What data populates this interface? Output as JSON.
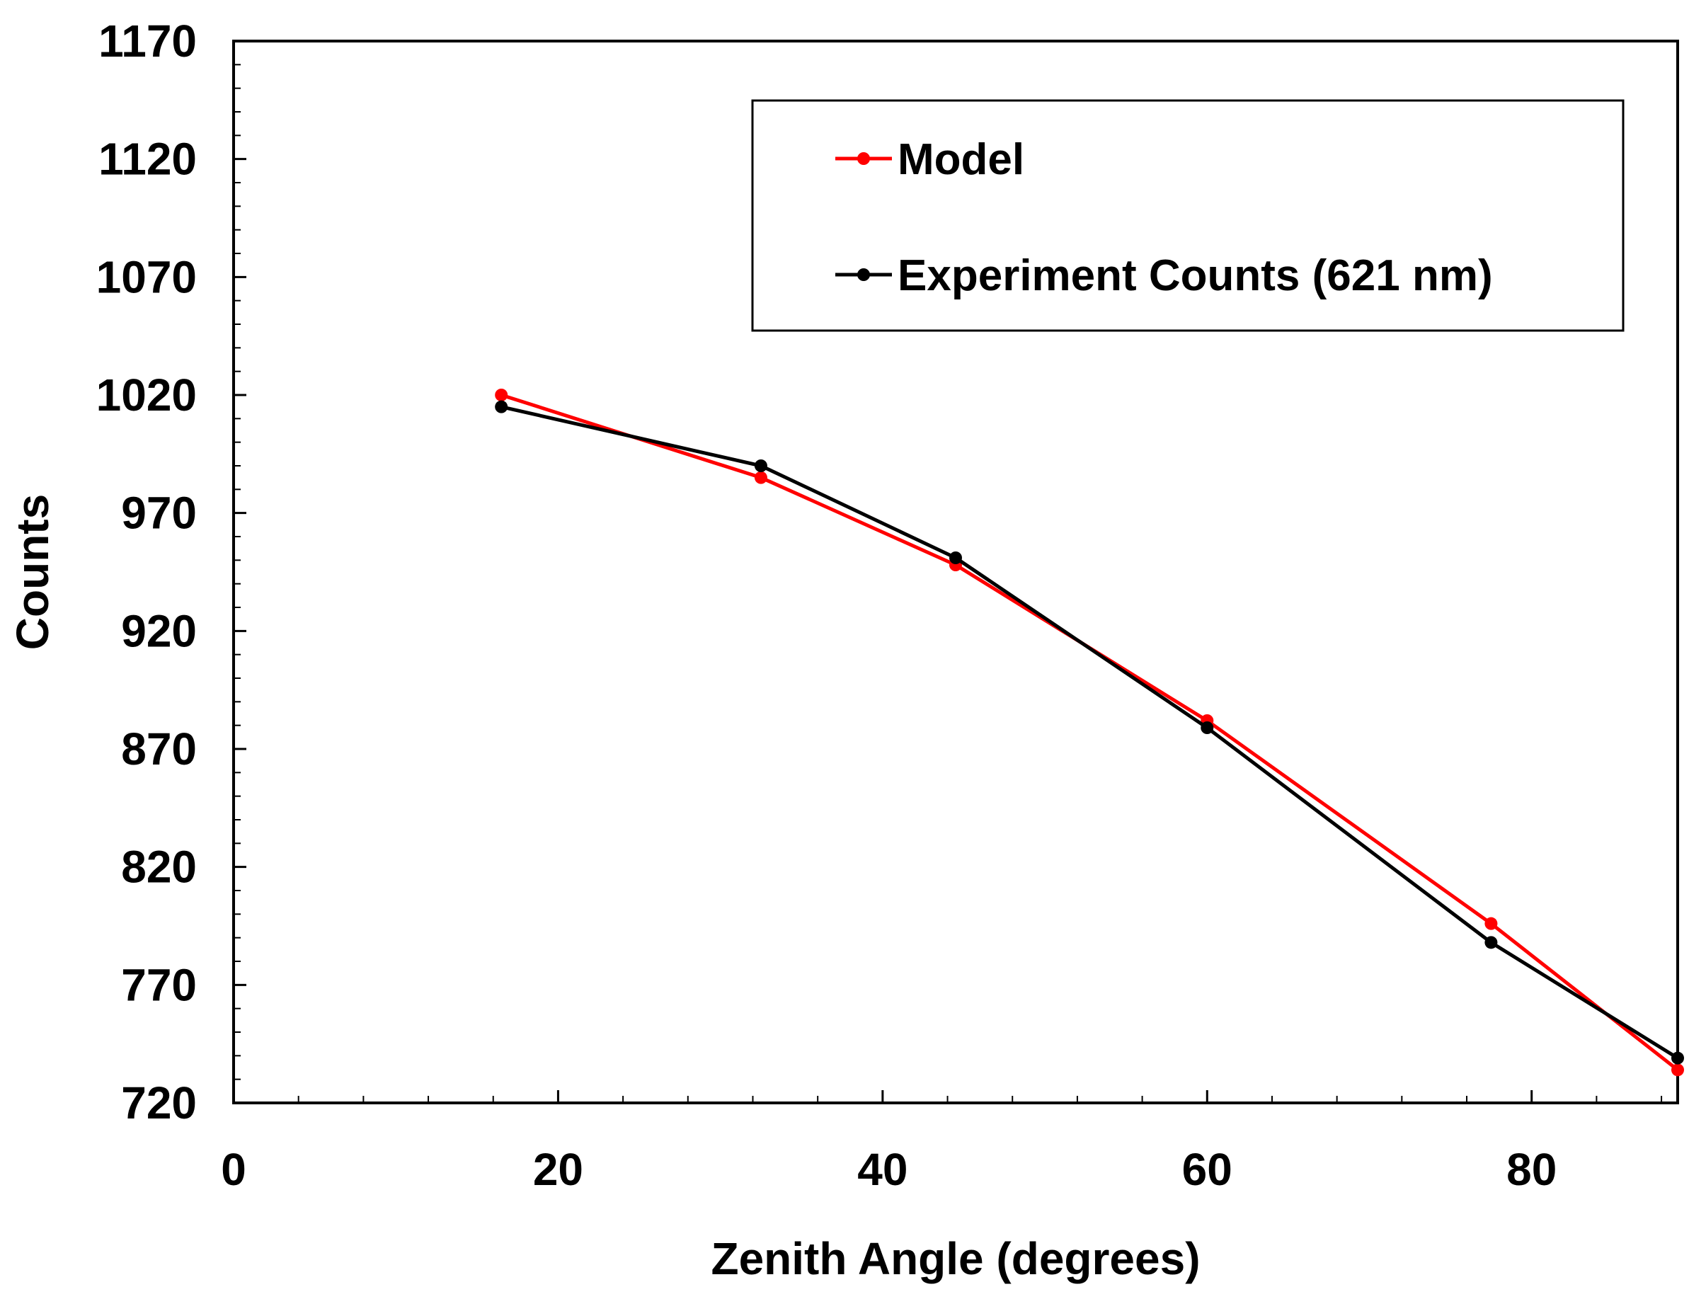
{
  "chart_data": {
    "type": "line",
    "title": "",
    "xlabel": "Zenith Angle (degrees)",
    "ylabel": "Counts",
    "xlim": [
      0,
      89
    ],
    "ylim": [
      720,
      1170
    ],
    "x_ticks": [
      0,
      20,
      40,
      60,
      80
    ],
    "x_tick_labels": [
      "0",
      "20",
      "40",
      "60",
      "80"
    ],
    "y_ticks": [
      720,
      770,
      820,
      870,
      920,
      970,
      1020,
      1070,
      1120,
      1170
    ],
    "y_tick_labels": [
      "720",
      "770",
      "820",
      "870",
      "920",
      "970",
      "1020",
      "1070",
      "1120",
      "1170"
    ],
    "grid": false,
    "legend_position": "top-right",
    "series": [
      {
        "name": "Model",
        "color": "#ff0000",
        "x": [
          16.5,
          32.5,
          44.5,
          60.0,
          77.5,
          89.0
        ],
        "values": [
          1020,
          985,
          948,
          882,
          796,
          734
        ]
      },
      {
        "name": "Experiment Counts (621 nm)",
        "color": "#000000",
        "x": [
          16.5,
          32.5,
          44.5,
          60.0,
          77.5,
          89.0
        ],
        "values": [
          1015,
          990,
          951,
          879,
          788,
          739
        ]
      }
    ]
  }
}
